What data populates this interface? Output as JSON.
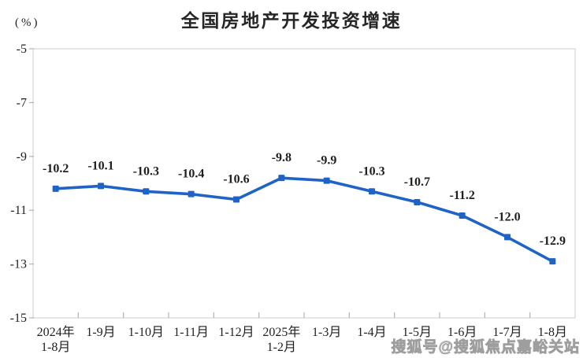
{
  "chart": {
    "title": "全国房地产开发投资增速",
    "unit_label": "(%)"
  },
  "watermark": {
    "text": "搜狐号@搜狐焦点嘉峪关站"
  },
  "colors": {
    "line": "#1e63c5",
    "marker": "#1e63c5",
    "data_label": "#1f1f1f",
    "axis_text": "#1f1f1f",
    "plot_border": "#d4d4d4",
    "tick": "#b3b3b3",
    "title": "#262626",
    "watermark": "#c3c3c3"
  },
  "chart_data": {
    "type": "line",
    "title": "全国房地产开发投资增速",
    "ylabel": "(%)",
    "categories": [
      "2024年\n1-8月",
      "1-9月",
      "1-10月",
      "1-11月",
      "1-12月",
      "2025年\n1-2月",
      "1-3月",
      "1-4月",
      "1-5月",
      "1-6月",
      "1-7月",
      "1-8月"
    ],
    "values": [
      -10.2,
      -10.1,
      -10.3,
      -10.4,
      -10.6,
      -9.8,
      -9.9,
      -10.3,
      -10.7,
      -11.2,
      -12.0,
      -12.9
    ],
    "data_labels": [
      "-10.2",
      "-10.1",
      "-10.3",
      "-10.4",
      "-10.6",
      "-9.8",
      "-9.9",
      "-10.3",
      "-10.7",
      "-11.2",
      "-12.0",
      "-12.9"
    ],
    "ylim": [
      -15,
      -5
    ],
    "yticks": [
      -5,
      -7,
      -9,
      -11,
      -13,
      -15
    ],
    "grid": false,
    "legend": "none",
    "marker": "square",
    "x_axis_mode": "between-ticks"
  }
}
